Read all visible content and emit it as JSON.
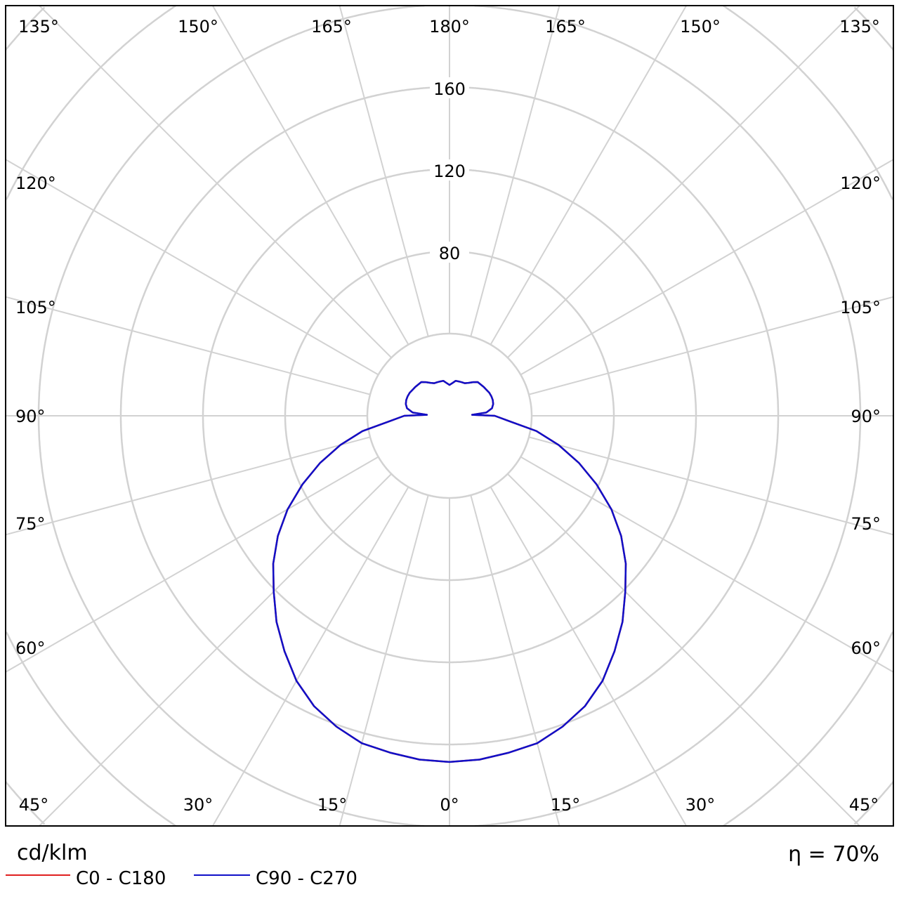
{
  "chart_data": {
    "type": "polar-line",
    "unit_label": "cd/klm",
    "efficiency_label": "η = 70%",
    "radial_ticks": [
      40,
      80,
      120,
      160,
      200,
      240,
      280
    ],
    "radial_tick_labels": [
      "80",
      "120",
      "160"
    ],
    "angle_step_deg": 15,
    "angle_labels": {
      "top": [
        "135°",
        "150°",
        "165°",
        "180°",
        "165°",
        "150°",
        "135°"
      ],
      "left": [
        "120°",
        "105°",
        "90°",
        "75°",
        "60°"
      ],
      "right": [
        "120°",
        "105°",
        "90°",
        "75°",
        "60°"
      ],
      "bottom": [
        "45°",
        "30°",
        "15°",
        "0°",
        "15°",
        "30°",
        "45°"
      ]
    },
    "grid": true,
    "legend_position": "bottom-left",
    "series": [
      {
        "name": "C0 - C180",
        "color": "#e02020",
        "angles": [
          0,
          5,
          10,
          15,
          20,
          25,
          30,
          35,
          40,
          45,
          50,
          55,
          60,
          65,
          70,
          75,
          80,
          85,
          90,
          92.5,
          95,
          100,
          105,
          110,
          115,
          120,
          125,
          130,
          135,
          140,
          145,
          150,
          155,
          160,
          165,
          170,
          175,
          180
        ],
        "values": [
          168.5,
          168,
          166.5,
          165,
          161,
          156,
          149,
          140,
          131,
          121,
          112,
          102,
          91,
          79,
          67,
          55,
          43,
          29,
          22,
          11,
          18,
          21,
          22,
          22.4,
          22.5,
          22.4,
          22,
          21.8,
          21.5,
          21.4,
          20,
          18.5,
          17.5,
          17.4,
          17.3,
          17.3,
          16,
          15
        ]
      },
      {
        "name": "C90 - C270",
        "color": "#1010c8",
        "angles": [
          0,
          5,
          10,
          15,
          20,
          25,
          30,
          35,
          40,
          45,
          50,
          55,
          60,
          65,
          70,
          75,
          80,
          85,
          90,
          92.5,
          95,
          100,
          105,
          110,
          115,
          120,
          125,
          130,
          135,
          140,
          145,
          150,
          155,
          160,
          165,
          170,
          175,
          180
        ],
        "values": [
          168.5,
          168,
          166.5,
          165,
          161,
          156,
          149,
          140,
          131,
          121,
          112,
          102,
          91,
          79,
          67,
          55,
          43,
          29,
          22,
          11,
          18,
          21,
          22,
          22.4,
          22.5,
          22.4,
          22,
          21.8,
          21.5,
          21.4,
          20,
          18.5,
          17.5,
          17.4,
          17.3,
          17.3,
          16,
          15
        ]
      }
    ]
  }
}
